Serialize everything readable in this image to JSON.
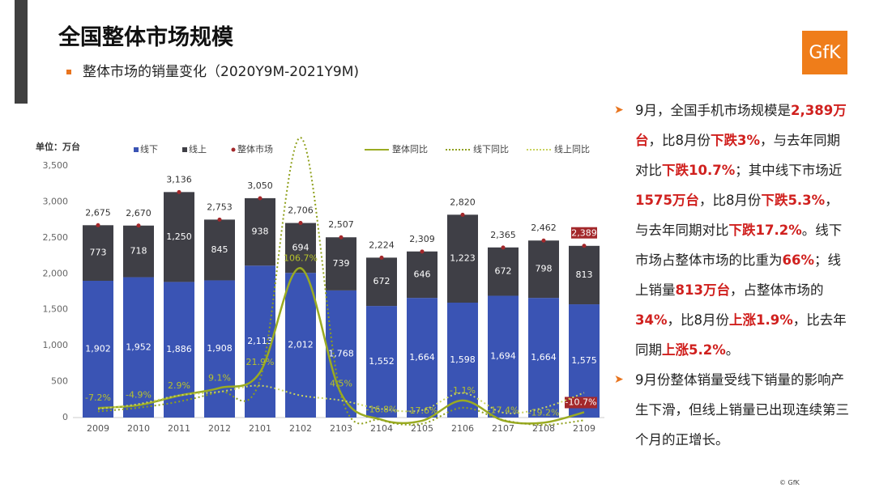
{
  "header": {
    "title": "全国整体市场规模",
    "subtitle": "整体市场的销量变化（2020Y9M-2021Y9M)",
    "logo": "GfK"
  },
  "chart_data": {
    "type": "bar",
    "stacked": true,
    "unit_label": "单位：万台",
    "categories": [
      "2009",
      "2010",
      "2011",
      "2012",
      "2101",
      "2102",
      "2103",
      "2104",
      "2105",
      "2106",
      "2107",
      "2108",
      "2109"
    ],
    "ylim": [
      0,
      3500
    ],
    "yticks": [
      0,
      500,
      {
        "value": 1000,
        "label": "1,000"
      },
      {
        "value": 1500,
        "label": "1,500"
      },
      {
        "value": 2000,
        "label": "2,000"
      },
      {
        "value": 2500,
        "label": "2,500"
      },
      {
        "value": 3000,
        "label": "3,000"
      },
      {
        "value": 3500,
        "label": "3,500"
      }
    ],
    "y2lim": [
      -15,
      190
    ],
    "grid": false,
    "series": [
      {
        "name": "线下",
        "color": "#3a54b4",
        "values": [
          1902,
          1952,
          1886,
          1908,
          2113,
          2012,
          1768,
          1552,
          1664,
          1598,
          1694,
          1664,
          1575
        ],
        "value_labels": [
          "1,902",
          "1,952",
          "1,886",
          "1,908",
          "2,113",
          "2,012",
          "1,768",
          "1,552",
          "1,664",
          "1,598",
          "1,694",
          "1,664",
          "1,575"
        ]
      },
      {
        "name": "线上",
        "color": "#3f3f46",
        "values": [
          773,
          718,
          1250,
          845,
          938,
          694,
          739,
          672,
          646,
          1223,
          672,
          798,
          813
        ],
        "value_labels": [
          "773",
          "718",
          "1,250",
          "845",
          "938",
          "694",
          "739",
          "672",
          "646",
          "1,223",
          "672",
          "798",
          "813"
        ]
      },
      {
        "name": "整体市场",
        "color": "#a3282b",
        "type": "marker",
        "values": [
          2675,
          2670,
          3136,
          2753,
          3050,
          2706,
          2507,
          2224,
          2309,
          2820,
          2365,
          2462,
          2389
        ],
        "value_labels": [
          "2,675",
          "2,670",
          "3,136",
          "2,753",
          "3,050",
          "2,706",
          "2,507",
          "2,224",
          "2,309",
          "2,820",
          "2,365",
          "2,462",
          "2,389"
        ]
      },
      {
        "name": "整体同比",
        "color": "#9aab22",
        "type": "line",
        "dash": "solid",
        "axis": "y2",
        "values": [
          -7.2,
          -4.9,
          2.9,
          9.1,
          21.9,
          106.7,
          4.5,
          -16.8,
          -17.6,
          -1.1,
          -17.4,
          -19.2,
          -10.7
        ],
        "value_labels": [
          "-7.2%",
          "-4.9%",
          "2.9%",
          "9.1%",
          "21.9%",
          "106.7%",
          "4.5%",
          "-16.8%",
          "-17.6%",
          "-1.1%",
          "-17.4%",
          "-19.2%",
          "-10.7%"
        ]
      },
      {
        "name": "线下同比",
        "color": "#8fa01c",
        "type": "line",
        "dash": "dotted",
        "axis": "y2",
        "values": [
          -10,
          -7,
          -2,
          6,
          16,
          213,
          3,
          -17,
          -20,
          -7,
          -17,
          -21,
          -17.2
        ]
      },
      {
        "name": "线上同比",
        "color": "#c9d35e",
        "type": "line",
        "dash": "dotted",
        "axis": "y2",
        "values": [
          -8,
          -4,
          3,
          6,
          11,
          3,
          -1,
          -8,
          -9,
          5,
          -11,
          -7,
          5.2
        ]
      }
    ]
  },
  "notes": [
    [
      {
        "text": "9月，全国手机市场规模是"
      },
      {
        "text": "2,389万台",
        "emphasis": true
      },
      {
        "text": "，比8月份"
      },
      {
        "text": "下跌3%",
        "emphasis": true
      },
      {
        "text": "，与去年同期对比"
      },
      {
        "text": "下跌10.7%",
        "emphasis": true
      },
      {
        "text": "；其中线下市场近"
      },
      {
        "text": "1575万台",
        "emphasis": true
      },
      {
        "text": "，比8月份"
      },
      {
        "text": "下跌5.3%",
        "emphasis": true
      },
      {
        "text": "，与去年同期对比"
      },
      {
        "text": "下跌17.2%",
        "emphasis": true
      },
      {
        "text": "。线下市场占整体市场的比重为"
      },
      {
        "text": "66%",
        "emphasis": true
      },
      {
        "text": "；线上销量"
      },
      {
        "text": "813万台",
        "emphasis": true
      },
      {
        "text": "，占整体市场的"
      },
      {
        "text": "34%",
        "emphasis": true
      },
      {
        "text": "，比8月份"
      },
      {
        "text": "上涨1.9%",
        "emphasis": true
      },
      {
        "text": "，比去年同期"
      },
      {
        "text": "上涨5.2%",
        "emphasis": true
      },
      {
        "text": "。"
      }
    ],
    [
      {
        "text": "9月份整体销量受线下销量的影响产生下滑，但线上销量已出现连续第三个月的正增长。"
      }
    ]
  ],
  "footer": "© GfK"
}
